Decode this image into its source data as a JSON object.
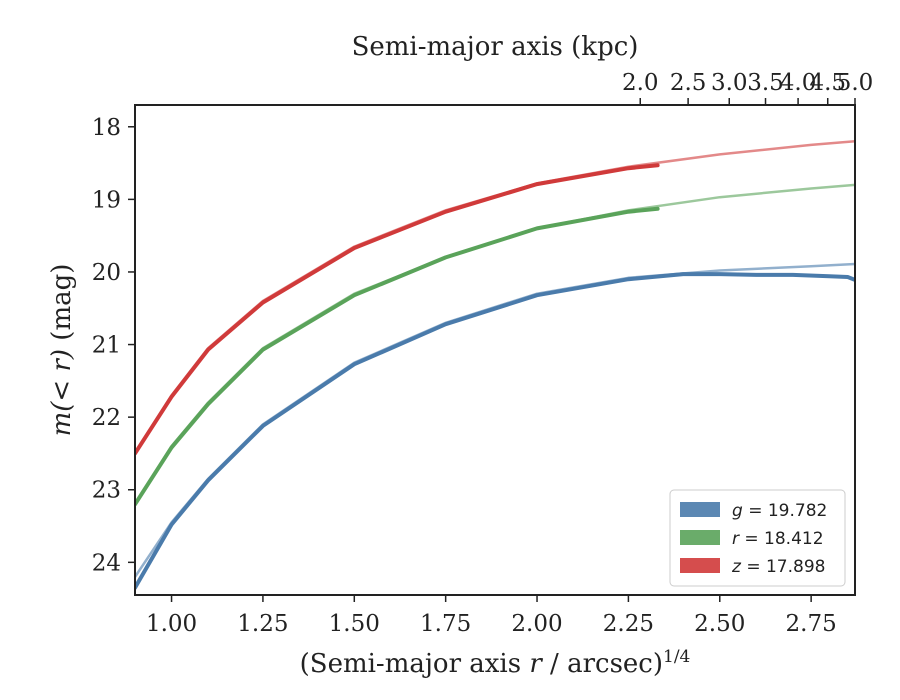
{
  "chart_data": {
    "type": "line",
    "xlabel": "(Semi-major axis r / arcsec)",
    "xlabel_superscript": "1/4",
    "ylabel": "m(< r) (mag)",
    "top_xlabel": "Semi-major axis (kpc)",
    "xlim": [
      0.9,
      2.87
    ],
    "ylim": [
      24.45,
      17.7
    ],
    "y_inverted": true,
    "grid": false,
    "legend_position": "lower right",
    "x_ticks": [
      "1.00",
      "1.25",
      "1.50",
      "1.75",
      "2.00",
      "2.25",
      "2.50",
      "2.75"
    ],
    "x_tick_values": [
      1.0,
      1.25,
      1.5,
      1.75,
      2.0,
      2.25,
      2.5,
      2.75
    ],
    "top_x_ticks": [
      "2.0",
      "2.5",
      "3.0",
      "3.5",
      "4.0",
      "4.5",
      "5.0"
    ],
    "y_ticks": [
      "18",
      "19",
      "20",
      "21",
      "22",
      "23",
      "24"
    ],
    "y_tick_values": [
      18,
      19,
      20,
      21,
      22,
      23,
      24
    ],
    "series": [
      {
        "name": "g = 19.782",
        "label_var": "g",
        "label_val": "19.782",
        "color": "#4a7bab",
        "model": {
          "x": [
            0.9,
            1.0,
            1.1,
            1.25,
            1.5,
            1.75,
            2.0,
            2.25,
            2.5,
            2.75,
            2.87
          ],
          "y": [
            24.2,
            23.45,
            22.85,
            22.1,
            21.25,
            20.7,
            20.3,
            20.08,
            19.98,
            19.92,
            19.89
          ]
        },
        "data": {
          "x": [
            0.9,
            1.0,
            1.1,
            1.25,
            1.5,
            1.75,
            2.0,
            2.25,
            2.4,
            2.5,
            2.6,
            2.7,
            2.8,
            2.85,
            2.87
          ],
          "y": [
            24.35,
            23.48,
            22.87,
            22.12,
            21.27,
            20.72,
            20.32,
            20.1,
            20.03,
            20.03,
            20.04,
            20.04,
            20.06,
            20.07,
            20.11
          ]
        }
      },
      {
        "name": "r = 18.412",
        "label_var": "r",
        "label_val": "18.412",
        "color": "#5aa35a",
        "model": {
          "x": [
            0.9,
            1.0,
            1.1,
            1.25,
            1.5,
            1.75,
            2.0,
            2.25,
            2.5,
            2.75,
            2.87
          ],
          "y": [
            23.2,
            22.4,
            21.8,
            21.05,
            20.3,
            19.8,
            19.4,
            19.15,
            18.97,
            18.85,
            18.8
          ]
        },
        "data": {
          "x": [
            0.9,
            1.0,
            1.1,
            1.25,
            1.5,
            1.75,
            2.0,
            2.25,
            2.33
          ],
          "y": [
            23.2,
            22.42,
            21.82,
            21.07,
            20.32,
            19.8,
            19.4,
            19.17,
            19.13
          ]
        }
      },
      {
        "name": "z = 17.898",
        "label_var": "z",
        "label_val": "17.898",
        "color": "#d03a3a",
        "model": {
          "x": [
            0.9,
            1.0,
            1.1,
            1.25,
            1.5,
            1.75,
            2.0,
            2.25,
            2.5,
            2.75,
            2.87
          ],
          "y": [
            22.5,
            21.7,
            21.05,
            20.4,
            19.65,
            19.15,
            18.78,
            18.55,
            18.38,
            18.25,
            18.2
          ]
        },
        "data": {
          "x": [
            0.9,
            1.0,
            1.1,
            1.25,
            1.5,
            1.75,
            2.0,
            2.25,
            2.33
          ],
          "y": [
            22.5,
            21.72,
            21.07,
            20.42,
            19.67,
            19.17,
            18.79,
            18.57,
            18.53
          ]
        }
      }
    ]
  }
}
